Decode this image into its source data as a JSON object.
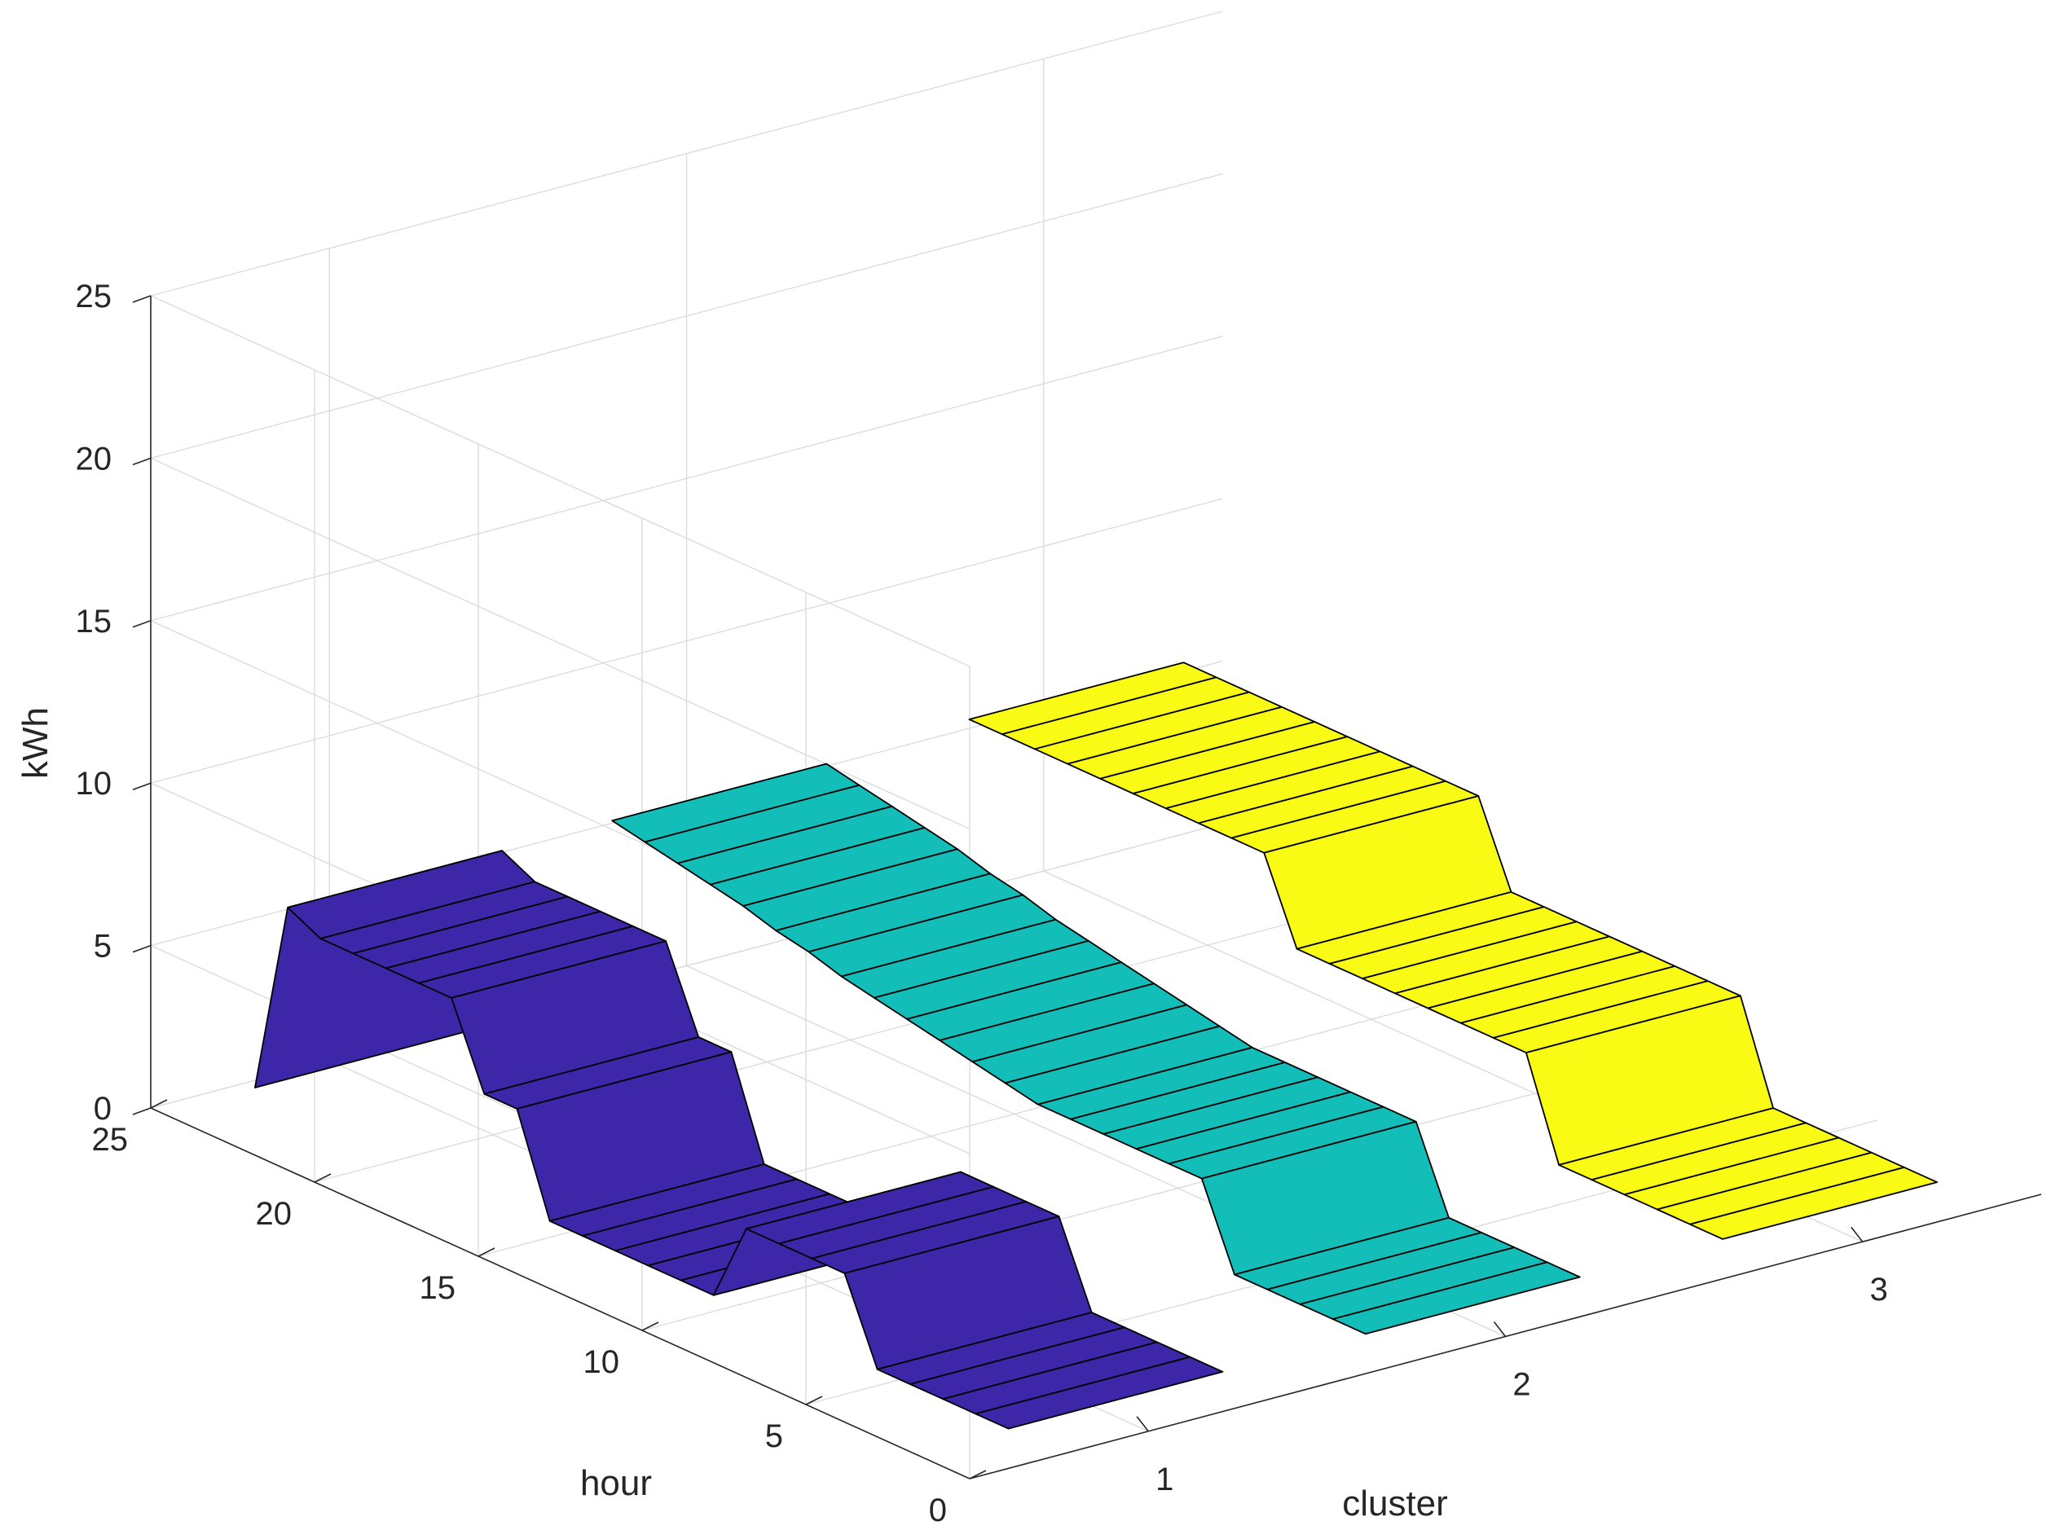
{
  "chart_data": {
    "type": "surface3d",
    "title": "",
    "xlabel": "cluster",
    "ylabel": "hour",
    "zlabel": "kWh",
    "x_ticks": [
      "1",
      "2",
      "3"
    ],
    "y_ticks": [
      "0",
      "5",
      "10",
      "15",
      "20",
      "25"
    ],
    "z_ticks": [
      "0",
      "5",
      "10",
      "15",
      "20",
      "25"
    ],
    "xlim": [
      0.5,
      3.5
    ],
    "ylim": [
      0,
      25
    ],
    "zlim": [
      0,
      25
    ],
    "grid": true,
    "hours": [
      1,
      2,
      3,
      4,
      5,
      6,
      7,
      8,
      9,
      10,
      11,
      12,
      13,
      14,
      15,
      16,
      17,
      18,
      19,
      20,
      21,
      22,
      23,
      24
    ],
    "series": [
      {
        "cluster": 1,
        "color": "#3e26a8",
        "values": [
          0.5,
          0.5,
          0.5,
          0.5,
          0.5,
          3.0,
          3.0,
          3.0,
          3.0,
          0.5,
          0.5,
          0.5,
          0.5,
          0.5,
          0.5,
          3.5,
          3.5,
          6.0,
          6.0,
          6.0,
          6.0,
          6.0,
          6.5,
          0.5
        ]
      },
      {
        "cluster": 2,
        "color": "#13beb8",
        "values": [
          0.5,
          0.5,
          0.5,
          0.5,
          0.5,
          3.0,
          3.0,
          3.0,
          3.0,
          3.0,
          3.0,
          3.2,
          3.4,
          3.6,
          3.8,
          4.0,
          4.2,
          4.5,
          4.7,
          5.0,
          5.2,
          5.4,
          5.6,
          5.8
        ]
      },
      {
        "cluster": 3,
        "color": "#f9fb15",
        "values": [
          0.5,
          0.5,
          0.5,
          0.5,
          0.5,
          0.5,
          3.5,
          3.5,
          3.5,
          3.5,
          3.5,
          3.5,
          3.5,
          3.5,
          6.0,
          6.0,
          6.0,
          6.0,
          6.0,
          6.0,
          6.0,
          6.0,
          6.0,
          6.0
        ]
      }
    ]
  }
}
